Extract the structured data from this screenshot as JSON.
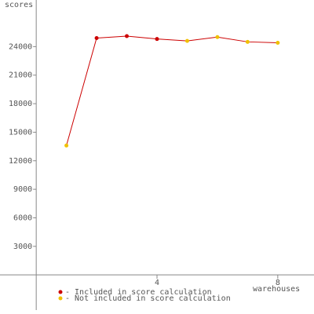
{
  "chart_data": {
    "type": "line",
    "y_label": "scores",
    "x_label": "warehouses",
    "x": [
      1,
      2,
      3,
      4,
      5,
      6,
      7,
      8
    ],
    "series": [
      {
        "name": "- Included in score calculation",
        "color": "#cc0000",
        "values": [
          null,
          24900,
          25100,
          24800,
          null,
          null,
          null,
          null
        ]
      },
      {
        "name": "- Not included in score calculation",
        "color": "#f0c000",
        "values": [
          13600,
          null,
          null,
          null,
          24600,
          25000,
          24500,
          24400
        ]
      }
    ],
    "line_color": "#cc0000",
    "xlim": [
      -1.2,
      9.2
    ],
    "ylim": [
      -3700,
      28900
    ],
    "xticks": [
      4,
      8
    ],
    "yticks": [
      3000,
      6000,
      9000,
      12000,
      15000,
      18000,
      21000,
      24000
    ]
  }
}
